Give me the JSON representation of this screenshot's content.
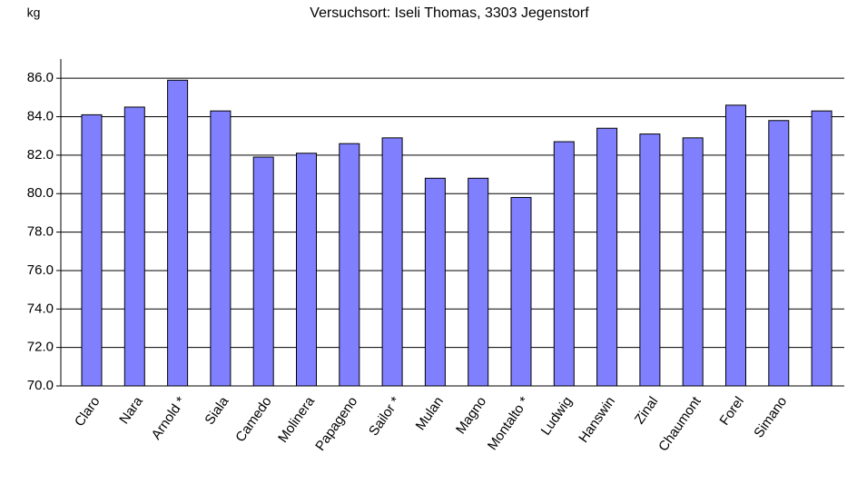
{
  "chart_data": {
    "type": "bar",
    "subtitle": "Versuchsort: Iseli Thomas, 3303 Jegenstorf",
    "y_label": "kg",
    "categories": [
      "Claro",
      "Nara",
      "Arnold *",
      "Siala",
      "Camedo",
      "Molinera",
      "Papageno",
      "Sailor *",
      "Mulan",
      "Magno",
      "Montalto *",
      "Ludwig",
      "Hanswin",
      "Zinal",
      "Chaumont",
      "Forel",
      "Simano",
      null
    ],
    "values": [
      84.1,
      84.5,
      85.9,
      84.3,
      81.9,
      82.1,
      82.6,
      82.9,
      80.8,
      80.8,
      79.8,
      82.7,
      83.4,
      83.1,
      82.9,
      84.6,
      83.8,
      84.3
    ],
    "color": "#8080ff",
    "ylim": [
      70,
      87
    ],
    "yticks": [
      {
        "value": 70,
        "label": "70.0"
      },
      {
        "value": 72,
        "label": "72.0"
      },
      {
        "value": 74,
        "label": "74.0"
      },
      {
        "value": 76,
        "label": "76.0"
      },
      {
        "value": 78,
        "label": "78.0"
      },
      {
        "value": 80,
        "label": "80.0"
      },
      {
        "value": 82,
        "label": "82.0"
      },
      {
        "value": 84,
        "label": "84.0"
      },
      {
        "value": 86,
        "label": "86.0"
      }
    ],
    "grid": true
  }
}
